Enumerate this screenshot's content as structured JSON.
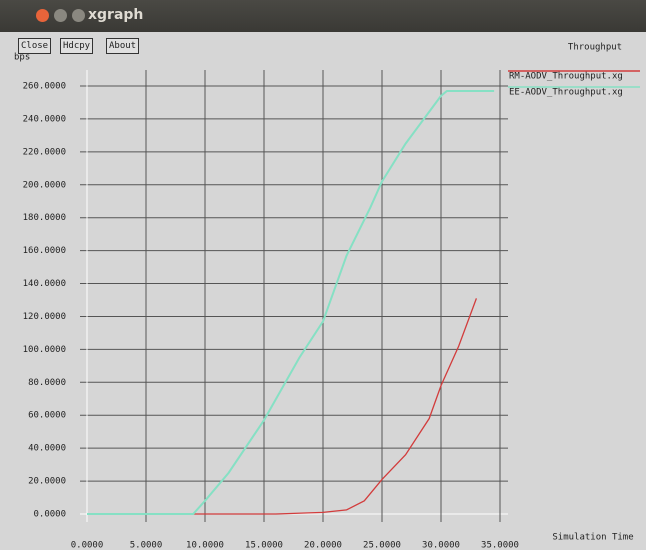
{
  "window": {
    "title": "xgraph",
    "buttons": [
      "Close",
      "Hdcpy",
      "About"
    ]
  },
  "chart_data": {
    "type": "line",
    "title": "Throughput",
    "x_label": "Simulation Time",
    "y_label": "bps",
    "xlim": [
      0,
      35
    ],
    "ylim": [
      0,
      260
    ],
    "xticks": [
      {
        "value": 0,
        "label": "0.0000"
      },
      {
        "value": 5,
        "label": "5.0000"
      },
      {
        "value": 10,
        "label": "10.0000"
      },
      {
        "value": 15,
        "label": "15.0000"
      },
      {
        "value": 20,
        "label": "20.0000"
      },
      {
        "value": 25,
        "label": "25.0000"
      },
      {
        "value": 30,
        "label": "30.0000"
      },
      {
        "value": 35,
        "label": "35.0000"
      }
    ],
    "yticks": [
      {
        "value": 0,
        "label": "0.0000"
      },
      {
        "value": 20,
        "label": "20.0000"
      },
      {
        "value": 40,
        "label": "40.0000"
      },
      {
        "value": 60,
        "label": "60.0000"
      },
      {
        "value": 80,
        "label": "80.0000"
      },
      {
        "value": 100,
        "label": "100.0000"
      },
      {
        "value": 120,
        "label": "120.0000"
      },
      {
        "value": 140,
        "label": "140.0000"
      },
      {
        "value": 160,
        "label": "160.0000"
      },
      {
        "value": 180,
        "label": "180.0000"
      },
      {
        "value": 200,
        "label": "200.0000"
      },
      {
        "value": 220,
        "label": "220.0000"
      },
      {
        "value": 240,
        "label": "240.0000"
      },
      {
        "value": 260,
        "label": "260.0000"
      }
    ],
    "grid": true,
    "series": [
      {
        "name": "RM-AODV_Throughput.xg",
        "color": "#d23c3c",
        "x": [
          8,
          12,
          16,
          20,
          22,
          23.5,
          25,
          27,
          29,
          30,
          31.5,
          33
        ],
        "values": [
          0,
          0,
          0,
          1,
          2.5,
          8,
          21,
          36,
          58,
          78,
          102,
          131
        ]
      },
      {
        "name": "EE-AODV_Throughput.xg",
        "color": "#86e0c4",
        "x": [
          0,
          4,
          9,
          10,
          12,
          15,
          18,
          20,
          22,
          24,
          25,
          27,
          30,
          30.5,
          34.5
        ],
        "values": [
          0,
          0,
          0,
          8,
          25,
          57,
          95,
          117,
          157,
          186,
          202,
          225,
          254,
          257,
          257
        ]
      }
    ]
  }
}
